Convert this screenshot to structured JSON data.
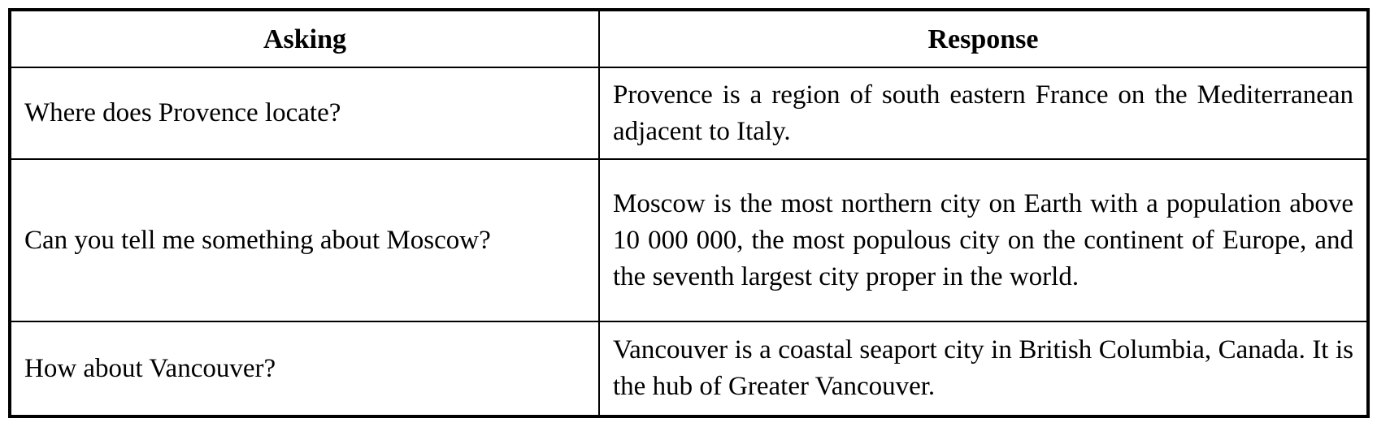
{
  "theme": {
    "border-color": "#000000",
    "text-color": "#000000",
    "bg-color": "#ffffff"
  },
  "table": {
    "columns": [
      {
        "label": "Asking"
      },
      {
        "label": "Response"
      }
    ],
    "rows": [
      {
        "asking": "Where does Provence locate?",
        "response": "Provence is a region of south eastern France on the Mediterranean adjacent to Italy."
      },
      {
        "asking": "Can you tell me something about Moscow?",
        "response": "Moscow is the most northern city on Earth with a population above 10 000 000, the most populous city on the continent of Europe, and the seventh largest city proper in the world."
      },
      {
        "asking": "How about Vancouver?",
        "response": "Vancouver is a coastal seaport city in British Columbia, Canada. It is the hub of Greater Vancouver."
      }
    ]
  }
}
